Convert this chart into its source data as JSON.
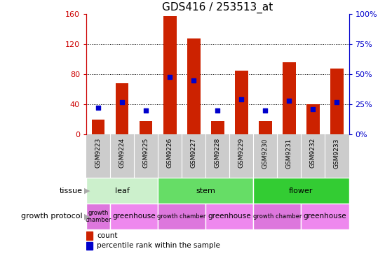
{
  "title": "GDS416 / 253513_at",
  "samples": [
    "GSM9223",
    "GSM9224",
    "GSM9225",
    "GSM9226",
    "GSM9227",
    "GSM9228",
    "GSM9229",
    "GSM9230",
    "GSM9231",
    "GSM9232",
    "GSM9233"
  ],
  "counts": [
    20,
    68,
    18,
    157,
    128,
    18,
    85,
    18,
    96,
    40,
    88
  ],
  "percentiles": [
    22,
    27,
    20,
    48,
    45,
    20,
    29,
    20,
    28,
    21,
    27
  ],
  "ylim_left": [
    0,
    160
  ],
  "ylim_right": [
    0,
    100
  ],
  "yticks_left": [
    0,
    40,
    80,
    120,
    160
  ],
  "yticks_right": [
    0,
    25,
    50,
    75,
    100
  ],
  "tissue_spans": [
    {
      "label": "leaf",
      "start": 0,
      "end": 3,
      "color": "#ccf0cc"
    },
    {
      "label": "stem",
      "start": 3,
      "end": 7,
      "color": "#66dd66"
    },
    {
      "label": "flower",
      "start": 7,
      "end": 11,
      "color": "#33cc33"
    }
  ],
  "growth_spans": [
    {
      "label": "growth\nchamber",
      "start": 0,
      "end": 1,
      "color": "#dd77dd"
    },
    {
      "label": "greenhouse",
      "start": 1,
      "end": 3,
      "color": "#ee88ee"
    },
    {
      "label": "growth chamber",
      "start": 3,
      "end": 5,
      "color": "#dd77dd"
    },
    {
      "label": "greenhouse",
      "start": 5,
      "end": 7,
      "color": "#ee88ee"
    },
    {
      "label": "growth chamber",
      "start": 7,
      "end": 9,
      "color": "#dd77dd"
    },
    {
      "label": "greenhouse",
      "start": 9,
      "end": 11,
      "color": "#ee88ee"
    }
  ],
  "bar_color": "#cc2200",
  "dot_color": "#0000cc",
  "left_axis_color": "#cc0000",
  "right_axis_color": "#0000cc",
  "xtick_bg": "#cccccc",
  "legend_count_color": "#cc2200",
  "legend_perc_color": "#0000cc"
}
